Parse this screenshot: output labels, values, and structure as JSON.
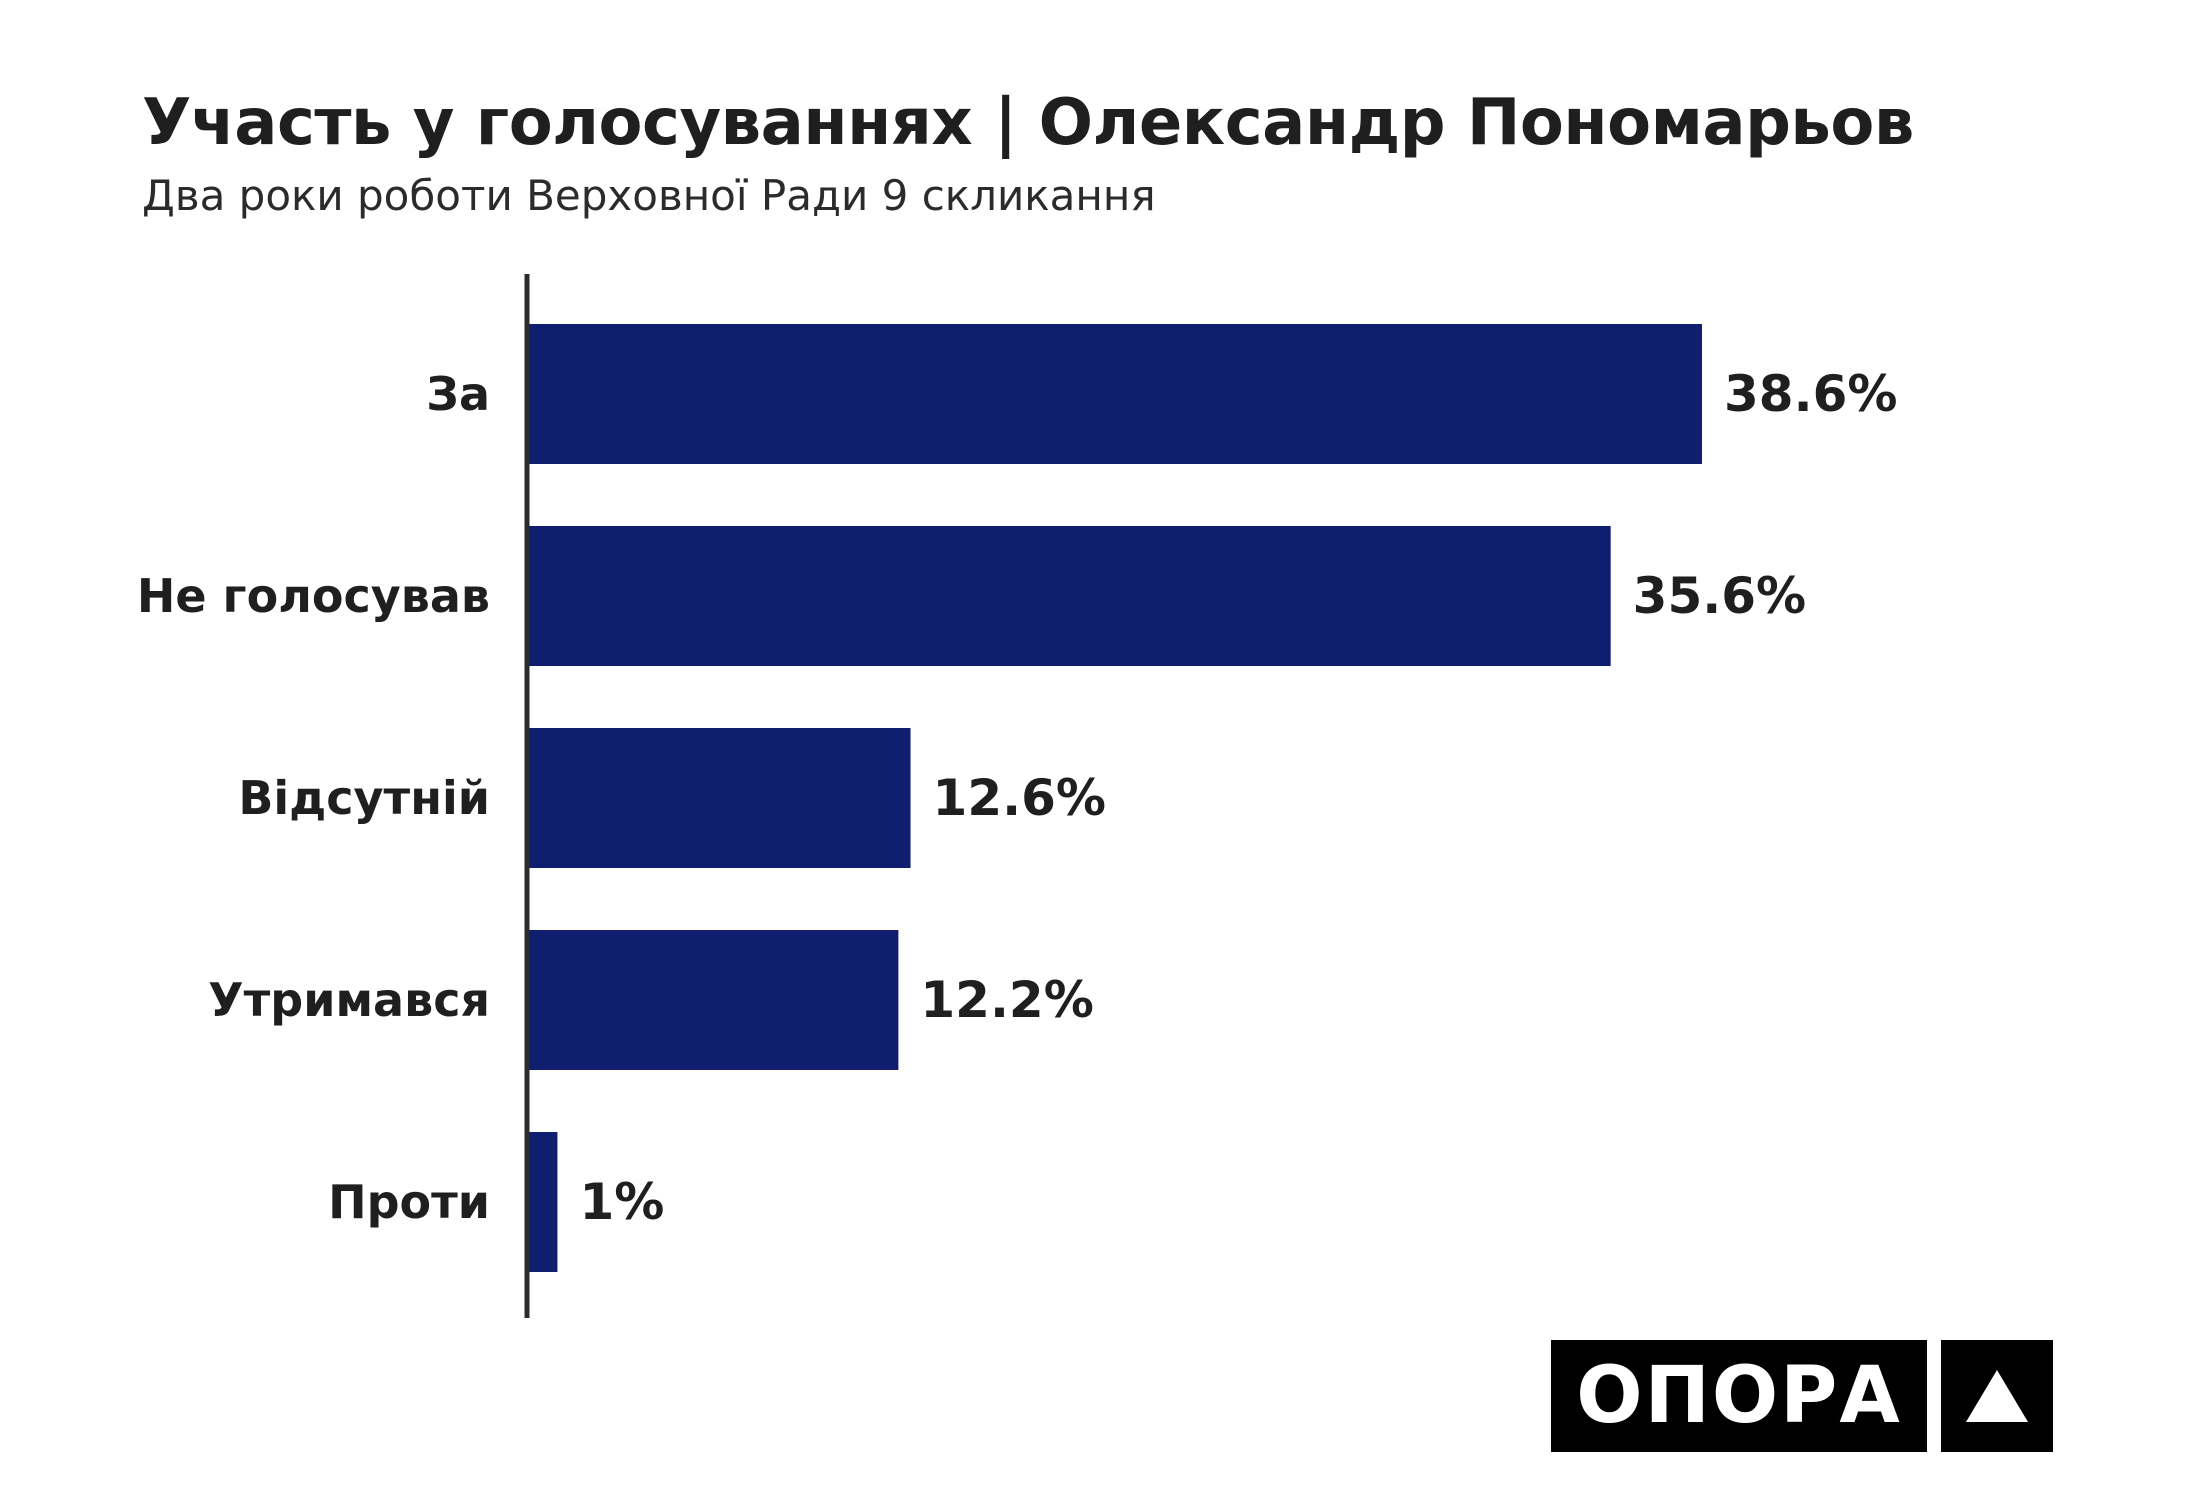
{
  "title": "Участь у голосуваннях | Олександр Пономарьов",
  "subtitle": "Два роки роботи Верховної Ради 9 скликання",
  "logo": {
    "text": "ОПОРА"
  },
  "colors": {
    "bar": "#0f1e6e",
    "axis": "#2b2b2b",
    "text": "#1f1f1f"
  },
  "chart_data": {
    "type": "bar",
    "orientation": "horizontal",
    "title": "Участь у голосуваннях | Олександр Пономарьов",
    "subtitle": "Два роки роботи Верховної Ради 9 скликання",
    "categories": [
      "За",
      "Не голосував",
      "Відсутній",
      "Утримався",
      "Проти"
    ],
    "values": [
      38.6,
      35.6,
      12.6,
      12.2,
      1
    ],
    "value_labels": [
      "38.6%",
      "35.6%",
      "12.6%",
      "12.2%",
      "1%"
    ],
    "unit": "%",
    "xlim": [
      0,
      40
    ],
    "grid": false,
    "legend": "none"
  }
}
